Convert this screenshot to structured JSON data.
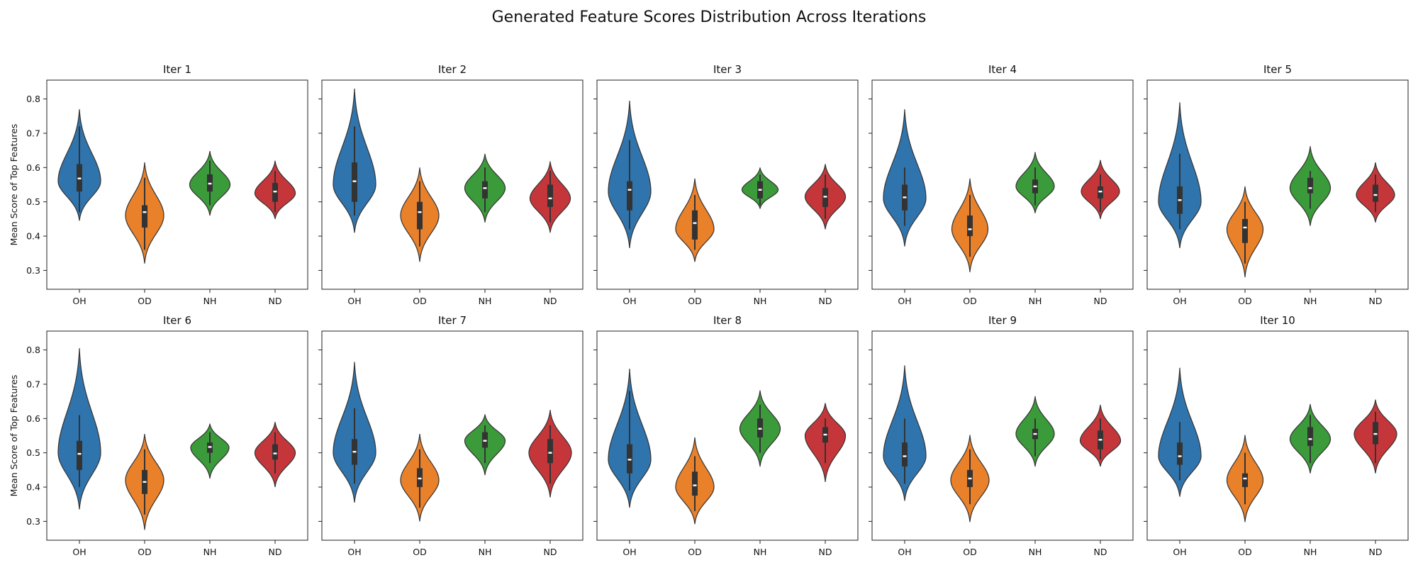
{
  "chart_data": {
    "type": "violin",
    "title": "Generated Feature Scores Distribution Across Iterations",
    "ylabel": "Mean Score of Top Features",
    "ylim": [
      0.245,
      0.855
    ],
    "yticks": [
      "0.3",
      "0.4",
      "0.5",
      "0.6",
      "0.7",
      "0.8"
    ],
    "categories": [
      "OH",
      "OD",
      "NH",
      "ND"
    ],
    "colors": {
      "OH": "#2f74ad",
      "OD": "#e9802a",
      "NH": "#3b9a39",
      "ND": "#c5363a"
    },
    "panels": [
      {
        "title": "Iter 1",
        "violins": [
          {
            "cat": "OH",
            "min": 0.445,
            "max": 0.77,
            "q1": 0.53,
            "median": 0.568,
            "q3": 0.61,
            "wlo": 0.47,
            "whi": 0.72,
            "mode": 0.56,
            "width": 1.0
          },
          {
            "cat": "OD",
            "min": 0.32,
            "max": 0.615,
            "q1": 0.425,
            "median": 0.47,
            "q3": 0.49,
            "wlo": 0.36,
            "whi": 0.57,
            "mode": 0.46,
            "width": 0.9
          },
          {
            "cat": "NH",
            "min": 0.46,
            "max": 0.648,
            "q1": 0.53,
            "median": 0.553,
            "q3": 0.58,
            "wlo": 0.49,
            "whi": 0.62,
            "mode": 0.55,
            "width": 0.95
          },
          {
            "cat": "ND",
            "min": 0.45,
            "max": 0.62,
            "q1": 0.5,
            "median": 0.53,
            "q3": 0.555,
            "wlo": 0.47,
            "whi": 0.59,
            "mode": 0.525,
            "width": 0.95
          }
        ]
      },
      {
        "title": "Iter 2",
        "violins": [
          {
            "cat": "OH",
            "min": 0.41,
            "max": 0.83,
            "q1": 0.5,
            "median": 0.56,
            "q3": 0.615,
            "wlo": 0.46,
            "whi": 0.72,
            "mode": 0.55,
            "width": 1.0
          },
          {
            "cat": "OD",
            "min": 0.325,
            "max": 0.6,
            "q1": 0.42,
            "median": 0.47,
            "q3": 0.5,
            "wlo": 0.37,
            "whi": 0.56,
            "mode": 0.46,
            "width": 0.9
          },
          {
            "cat": "NH",
            "min": 0.44,
            "max": 0.64,
            "q1": 0.51,
            "median": 0.54,
            "q3": 0.56,
            "wlo": 0.47,
            "whi": 0.6,
            "mode": 0.54,
            "width": 0.95
          },
          {
            "cat": "ND",
            "min": 0.41,
            "max": 0.618,
            "q1": 0.485,
            "median": 0.51,
            "q3": 0.55,
            "wlo": 0.44,
            "whi": 0.59,
            "mode": 0.51,
            "width": 0.95
          }
        ]
      },
      {
        "title": "Iter 3",
        "violins": [
          {
            "cat": "OH",
            "min": 0.365,
            "max": 0.795,
            "q1": 0.475,
            "median": 0.535,
            "q3": 0.56,
            "wlo": 0.42,
            "whi": 0.68,
            "mode": 0.53,
            "width": 1.0
          },
          {
            "cat": "OD",
            "min": 0.325,
            "max": 0.568,
            "q1": 0.39,
            "median": 0.438,
            "q3": 0.475,
            "wlo": 0.36,
            "whi": 0.52,
            "mode": 0.42,
            "width": 0.9
          },
          {
            "cat": "NH",
            "min": 0.48,
            "max": 0.6,
            "q1": 0.51,
            "median": 0.535,
            "q3": 0.56,
            "wlo": 0.49,
            "whi": 0.58,
            "mode": 0.535,
            "width": 0.85
          },
          {
            "cat": "ND",
            "min": 0.42,
            "max": 0.61,
            "q1": 0.485,
            "median": 0.515,
            "q3": 0.54,
            "wlo": 0.45,
            "whi": 0.58,
            "mode": 0.515,
            "width": 0.95
          }
        ]
      },
      {
        "title": "Iter 4",
        "violins": [
          {
            "cat": "OH",
            "min": 0.37,
            "max": 0.77,
            "q1": 0.475,
            "median": 0.513,
            "q3": 0.55,
            "wlo": 0.43,
            "whi": 0.6,
            "mode": 0.51,
            "width": 1.0
          },
          {
            "cat": "OD",
            "min": 0.295,
            "max": 0.568,
            "q1": 0.4,
            "median": 0.42,
            "q3": 0.46,
            "wlo": 0.34,
            "whi": 0.52,
            "mode": 0.42,
            "width": 0.85
          },
          {
            "cat": "NH",
            "min": 0.467,
            "max": 0.645,
            "q1": 0.525,
            "median": 0.545,
            "q3": 0.565,
            "wlo": 0.49,
            "whi": 0.6,
            "mode": 0.545,
            "width": 0.9
          },
          {
            "cat": "ND",
            "min": 0.45,
            "max": 0.622,
            "q1": 0.51,
            "median": 0.53,
            "q3": 0.545,
            "wlo": 0.47,
            "whi": 0.58,
            "mode": 0.53,
            "width": 0.9
          }
        ]
      },
      {
        "title": "Iter 5",
        "violins": [
          {
            "cat": "OH",
            "min": 0.365,
            "max": 0.79,
            "q1": 0.465,
            "median": 0.505,
            "q3": 0.545,
            "wlo": 0.42,
            "whi": 0.64,
            "mode": 0.5,
            "width": 1.0
          },
          {
            "cat": "OD",
            "min": 0.28,
            "max": 0.545,
            "q1": 0.38,
            "median": 0.425,
            "q3": 0.45,
            "wlo": 0.32,
            "whi": 0.5,
            "mode": 0.42,
            "width": 0.85
          },
          {
            "cat": "NH",
            "min": 0.43,
            "max": 0.662,
            "q1": 0.525,
            "median": 0.54,
            "q3": 0.57,
            "wlo": 0.48,
            "whi": 0.59,
            "mode": 0.54,
            "width": 0.95
          },
          {
            "cat": "ND",
            "min": 0.44,
            "max": 0.615,
            "q1": 0.5,
            "median": 0.52,
            "q3": 0.55,
            "wlo": 0.47,
            "whi": 0.58,
            "mode": 0.52,
            "width": 0.9
          }
        ]
      },
      {
        "title": "Iter 6",
        "violins": [
          {
            "cat": "OH",
            "min": 0.335,
            "max": 0.805,
            "q1": 0.45,
            "median": 0.497,
            "q3": 0.535,
            "wlo": 0.4,
            "whi": 0.61,
            "mode": 0.5,
            "width": 1.0
          },
          {
            "cat": "OD",
            "min": 0.275,
            "max": 0.555,
            "q1": 0.38,
            "median": 0.415,
            "q3": 0.45,
            "wlo": 0.32,
            "whi": 0.51,
            "mode": 0.42,
            "width": 0.9
          },
          {
            "cat": "NH",
            "min": 0.425,
            "max": 0.585,
            "q1": 0.5,
            "median": 0.517,
            "q3": 0.53,
            "wlo": 0.47,
            "whi": 0.56,
            "mode": 0.515,
            "width": 0.9
          },
          {
            "cat": "ND",
            "min": 0.4,
            "max": 0.59,
            "q1": 0.48,
            "median": 0.498,
            "q3": 0.525,
            "wlo": 0.44,
            "whi": 0.56,
            "mode": 0.5,
            "width": 0.95
          }
        ]
      },
      {
        "title": "Iter 7",
        "violins": [
          {
            "cat": "OH",
            "min": 0.355,
            "max": 0.765,
            "q1": 0.465,
            "median": 0.503,
            "q3": 0.54,
            "wlo": 0.41,
            "whi": 0.63,
            "mode": 0.5,
            "width": 1.0
          },
          {
            "cat": "OD",
            "min": 0.3,
            "max": 0.555,
            "q1": 0.4,
            "median": 0.425,
            "q3": 0.455,
            "wlo": 0.34,
            "whi": 0.51,
            "mode": 0.42,
            "width": 0.9
          },
          {
            "cat": "NH",
            "min": 0.435,
            "max": 0.612,
            "q1": 0.515,
            "median": 0.535,
            "q3": 0.56,
            "wlo": 0.47,
            "whi": 0.58,
            "mode": 0.535,
            "width": 0.95
          },
          {
            "cat": "ND",
            "min": 0.37,
            "max": 0.625,
            "q1": 0.47,
            "median": 0.5,
            "q3": 0.54,
            "wlo": 0.41,
            "whi": 0.58,
            "mode": 0.5,
            "width": 1.0
          }
        ]
      },
      {
        "title": "Iter 8",
        "violins": [
          {
            "cat": "OH",
            "min": 0.34,
            "max": 0.745,
            "q1": 0.44,
            "median": 0.48,
            "q3": 0.525,
            "wlo": 0.39,
            "whi": 0.68,
            "mode": 0.48,
            "width": 1.0
          },
          {
            "cat": "OD",
            "min": 0.292,
            "max": 0.545,
            "q1": 0.375,
            "median": 0.405,
            "q3": 0.445,
            "wlo": 0.33,
            "whi": 0.49,
            "mode": 0.4,
            "width": 0.9
          },
          {
            "cat": "NH",
            "min": 0.46,
            "max": 0.682,
            "q1": 0.545,
            "median": 0.57,
            "q3": 0.6,
            "wlo": 0.5,
            "whi": 0.64,
            "mode": 0.57,
            "width": 0.95
          },
          {
            "cat": "ND",
            "min": 0.415,
            "max": 0.645,
            "q1": 0.53,
            "median": 0.553,
            "q3": 0.575,
            "wlo": 0.47,
            "whi": 0.6,
            "mode": 0.55,
            "width": 0.95
          }
        ]
      },
      {
        "title": "Iter 9",
        "violins": [
          {
            "cat": "OH",
            "min": 0.36,
            "max": 0.755,
            "q1": 0.46,
            "median": 0.49,
            "q3": 0.53,
            "wlo": 0.41,
            "whi": 0.6,
            "mode": 0.49,
            "width": 1.0
          },
          {
            "cat": "OD",
            "min": 0.298,
            "max": 0.552,
            "q1": 0.4,
            "median": 0.425,
            "q3": 0.45,
            "wlo": 0.35,
            "whi": 0.51,
            "mode": 0.42,
            "width": 0.9
          },
          {
            "cat": "NH",
            "min": 0.46,
            "max": 0.665,
            "q1": 0.54,
            "median": 0.555,
            "q3": 0.57,
            "wlo": 0.49,
            "whi": 0.6,
            "mode": 0.555,
            "width": 0.9
          },
          {
            "cat": "ND",
            "min": 0.46,
            "max": 0.64,
            "q1": 0.51,
            "median": 0.538,
            "q3": 0.565,
            "wlo": 0.48,
            "whi": 0.6,
            "mode": 0.535,
            "width": 0.95
          }
        ]
      },
      {
        "title": "Iter 10",
        "violins": [
          {
            "cat": "OH",
            "min": 0.372,
            "max": 0.748,
            "q1": 0.465,
            "median": 0.49,
            "q3": 0.53,
            "wlo": 0.42,
            "whi": 0.59,
            "mode": 0.49,
            "width": 1.0
          },
          {
            "cat": "OD",
            "min": 0.298,
            "max": 0.552,
            "q1": 0.4,
            "median": 0.425,
            "q3": 0.44,
            "wlo": 0.35,
            "whi": 0.5,
            "mode": 0.42,
            "width": 0.85
          },
          {
            "cat": "NH",
            "min": 0.44,
            "max": 0.642,
            "q1": 0.52,
            "median": 0.54,
            "q3": 0.575,
            "wlo": 0.47,
            "whi": 0.61,
            "mode": 0.54,
            "width": 0.95
          },
          {
            "cat": "ND",
            "min": 0.44,
            "max": 0.655,
            "q1": 0.525,
            "median": 0.555,
            "q3": 0.59,
            "wlo": 0.47,
            "whi": 0.62,
            "mode": 0.555,
            "width": 1.0
          }
        ]
      }
    ]
  }
}
